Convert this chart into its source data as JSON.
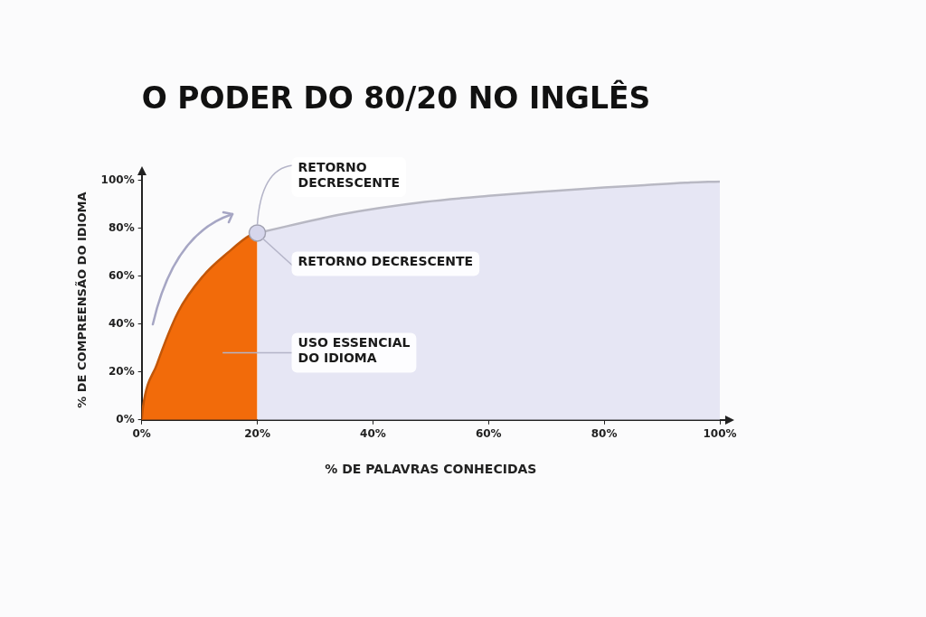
{
  "chart_data": {
    "type": "area",
    "title": "O PODER DO 80/20 NO INGLÊS",
    "xlabel": "% DE PALAVRAS CONHECIDAS",
    "ylabel": "% DE COMPREENSÃO DO IDIOMA",
    "xlim": [
      0,
      100
    ],
    "ylim": [
      0,
      100
    ],
    "xticks": [
      {
        "value": 0,
        "label": "0%"
      },
      {
        "value": 20,
        "label": "20%"
      },
      {
        "value": 40,
        "label": "40%"
      },
      {
        "value": 60,
        "label": "60%"
      },
      {
        "value": 80,
        "label": "80%"
      },
      {
        "value": 100,
        "label": "100%"
      }
    ],
    "yticks": [
      {
        "value": 0,
        "label": "0%"
      },
      {
        "value": 20,
        "label": "20%"
      },
      {
        "value": 40,
        "label": "40%"
      },
      {
        "value": 60,
        "label": "60%"
      },
      {
        "value": 80,
        "label": "80%"
      },
      {
        "value": 100,
        "label": "100%"
      }
    ],
    "grid": false,
    "legend": false,
    "series": [
      {
        "color": "#f26b0a",
        "x": [
          0,
          0.2,
          2.6,
          6.3,
          10.6,
          15,
          18.7,
          20
        ],
        "values": [
          0,
          5,
          23,
          45,
          60,
          70,
          77,
          78
        ]
      },
      {
        "color": "#e6e6f4",
        "x": [
          20,
          35,
          49,
          60,
          71,
          80,
          87,
          94,
          100
        ],
        "values": [
          78,
          86,
          91,
          93.5,
          95.5,
          97,
          98,
          99,
          99.5
        ]
      },
      {
        "type": "scatter",
        "color": "#d6d6ec",
        "marker": "circle",
        "x": [
          20
        ],
        "values": [
          78
        ]
      }
    ],
    "annotations": [
      {
        "text": "RETORNO DECRESCENTE",
        "x": 20,
        "y": 78
      },
      {
        "text": "RETORNO DECRESCENTE",
        "x": 20,
        "y": 78
      },
      "USO ESSENCIAL DO IDIOMA"
    ]
  }
}
